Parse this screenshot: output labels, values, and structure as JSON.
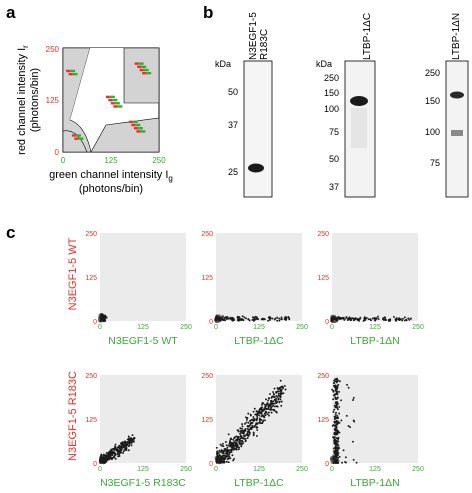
{
  "colors": {
    "red": "#e8312a",
    "green": "#3aaa35",
    "plot_bg": "#ebebeb",
    "region_gray": "#d3d3d3",
    "dots": "#1b1b1b"
  },
  "panels": {
    "a": {
      "letter": "a"
    },
    "b": {
      "letter": "b"
    },
    "c": {
      "letter": "c"
    }
  },
  "chart_data": [
    {
      "id": "panel-a",
      "type": "scatter",
      "title": "",
      "xlabel_line1": "green channel intensity I",
      "xlabel_sub": "g",
      "xlabel_line2": "(photons/bin)",
      "ylabel_line1": "red channel intensity I",
      "ylabel_sub": "r",
      "ylabel_line2": "(photons/bin)",
      "xticks": [
        "0",
        "125",
        "250"
      ],
      "yticks": [
        "0",
        "125",
        "250"
      ],
      "xlim": [
        0,
        250
      ],
      "ylim": [
        0,
        250
      ],
      "clusters": [
        {
          "name": "green-low",
          "x": 40,
          "y": 35
        },
        {
          "name": "red-mid-left",
          "x": 25,
          "y": 190
        },
        {
          "name": "middle",
          "x": 135,
          "y": 120
        },
        {
          "name": "green-right",
          "x": 195,
          "y": 60
        },
        {
          "name": "red-top-right",
          "x": 210,
          "y": 200
        }
      ]
    },
    {
      "id": "panel-b",
      "type": "gel",
      "unit_label": "kDa",
      "lanes": [
        {
          "label_line1": "N3EGF1-5",
          "label_line2": "R183C",
          "markers": [
            "50",
            "37",
            "25"
          ],
          "band_kda": 26
        },
        {
          "label_line1": "LTBP-1ΔC",
          "label_line2": "",
          "markers": [
            "250",
            "150",
            "100",
            "75",
            "50",
            "37"
          ],
          "band_kda": 120
        },
        {
          "label_line1": "LTBP-1ΔN",
          "label_line2": "",
          "markers": [
            "250",
            "150",
            "100",
            "75"
          ],
          "band_kda": 160
        }
      ]
    },
    {
      "id": "panel-c",
      "type": "scatter",
      "xlim": [
        0,
        250
      ],
      "ylim": [
        0,
        250
      ],
      "xticks": [
        "0",
        "125",
        "250"
      ],
      "yticks": [
        "0",
        "125",
        "250"
      ],
      "row_labels": [
        "N3EGF1-5 WT",
        "N3EGF1-5 R183C"
      ],
      "column_labels": [
        [
          "N3EGF1-5 WT",
          "LTBP-1ΔC",
          "LTBP-1ΔN"
        ],
        [
          "N3EGF1-5 R183C",
          "LTBP-1ΔC",
          "LTBP-1ΔN"
        ]
      ],
      "subplots": [
        {
          "row": 0,
          "col": 0,
          "core": [
            5,
            8
          ],
          "spread": "compact",
          "max_x": 35,
          "max_y": 35
        },
        {
          "row": 0,
          "col": 1,
          "core": [
            5,
            5
          ],
          "spread": "x-tail",
          "max_x": 215,
          "max_y": 45
        },
        {
          "row": 0,
          "col": 2,
          "core": [
            5,
            5
          ],
          "spread": "x-tail",
          "max_x": 230,
          "max_y": 45
        },
        {
          "row": 1,
          "col": 0,
          "core": [
            10,
            10
          ],
          "spread": "diagonal",
          "max_x": 160,
          "max_y": 120
        },
        {
          "row": 1,
          "col": 1,
          "core": [
            10,
            10
          ],
          "spread": "wide-diagonal",
          "max_x": 230,
          "max_y": 240
        },
        {
          "row": 1,
          "col": 2,
          "core": [
            5,
            10
          ],
          "spread": "vertical",
          "max_x": 100,
          "max_y": 240
        }
      ]
    }
  ]
}
